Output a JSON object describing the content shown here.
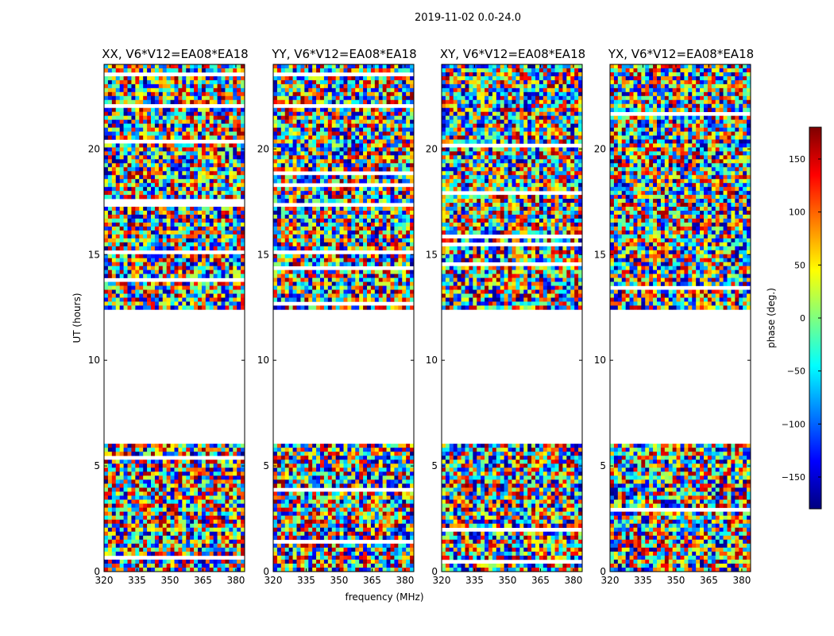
{
  "figure": {
    "suptitle": "2019-11-02 0.0-24.0",
    "xlabel": "frequency (MHz)",
    "ylabel": "UT (hours)"
  },
  "colorbar": {
    "label": "phase (deg.)",
    "range": [
      -180,
      180
    ],
    "ticks": [
      150,
      100,
      50,
      0,
      -50,
      -100,
      -150
    ],
    "tick_labels": [
      "150",
      "100",
      "50",
      "0",
      "−50",
      "−100",
      "−150"
    ],
    "colormap": "jet",
    "colormap_stops": [
      "#00007f",
      "#0000ff",
      "#007fff",
      "#00ffff",
      "#7fff7f",
      "#ffff00",
      "#ff7f00",
      "#ff0000",
      "#7f0000"
    ]
  },
  "chart_data": [
    {
      "type": "heatmap",
      "title": "XX, V6*V12=EA08*EA18",
      "xlim": [
        320,
        384
      ],
      "ylim": [
        0,
        24
      ],
      "xticks": [
        320,
        335,
        350,
        365,
        380
      ],
      "yticks": [
        0,
        5,
        10,
        15,
        20
      ]
    },
    {
      "type": "heatmap",
      "title": "YY, V6*V12=EA08*EA18",
      "xlim": [
        320,
        384
      ],
      "ylim": [
        0,
        24
      ],
      "xticks": [
        320,
        335,
        350,
        365,
        380
      ],
      "yticks": [
        0,
        5,
        10,
        15,
        20
      ]
    },
    {
      "type": "heatmap",
      "title": "XY, V6*V12=EA08*EA18",
      "xlim": [
        320,
        384
      ],
      "ylim": [
        0,
        24
      ],
      "xticks": [
        320,
        335,
        350,
        365,
        380
      ],
      "yticks": [
        0,
        5,
        10,
        15,
        20
      ]
    },
    {
      "type": "heatmap",
      "title": "YX, V6*V12=EA08*EA18",
      "xlim": [
        320,
        384
      ],
      "ylim": [
        0,
        24
      ],
      "xticks": [
        320,
        335,
        350,
        365,
        380
      ],
      "yticks": [
        0,
        5,
        10,
        15,
        20
      ]
    }
  ]
}
